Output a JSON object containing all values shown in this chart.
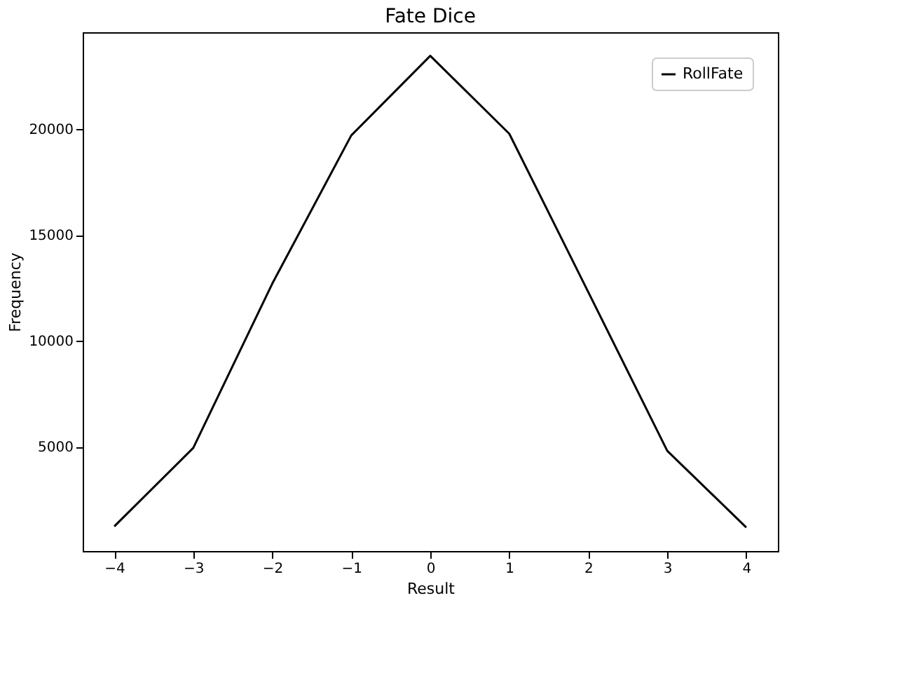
{
  "chart_data": {
    "type": "line",
    "title": "Fate Dice",
    "xlabel": "Result",
    "ylabel": "Frequency",
    "x": [
      -4,
      -3,
      -2,
      -1,
      0,
      1,
      2,
      3,
      4
    ],
    "series": [
      {
        "name": "RollFate",
        "color": "#000000",
        "values": [
          1230,
          4940,
          12700,
          19700,
          23460,
          19780,
          12300,
          4800,
          1180
        ]
      }
    ],
    "xlim": [
      -4.4,
      4.4
    ],
    "xticks": [
      -4,
      -3,
      -2,
      -1,
      0,
      1,
      2,
      3,
      4
    ],
    "ylim": [
      66,
      24574
    ],
    "yticks": [
      5000,
      10000,
      15000,
      20000
    ],
    "grid": false,
    "legend": "top right",
    "marker": "none",
    "line_style": "solid"
  }
}
